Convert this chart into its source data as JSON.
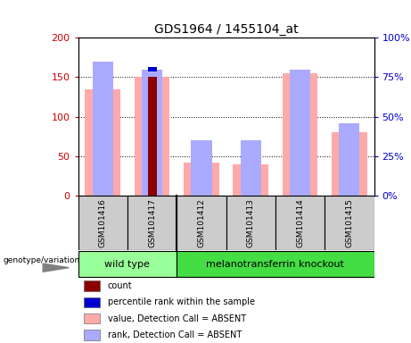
{
  "title": "GDS1964 / 1455104_at",
  "samples": [
    "GSM101416",
    "GSM101417",
    "GSM101412",
    "GSM101413",
    "GSM101414",
    "GSM101415"
  ],
  "pink_bars": [
    135,
    150,
    42,
    40,
    155,
    80
  ],
  "lavender_bars": [
    85,
    80,
    35,
    35,
    80,
    46
  ],
  "dark_red_bars": [
    0,
    150,
    0,
    0,
    0,
    0
  ],
  "blue_bars": [
    0,
    80,
    0,
    0,
    0,
    0
  ],
  "ylim_left": [
    0,
    200
  ],
  "ylim_right": [
    0,
    100
  ],
  "yticks_left": [
    0,
    50,
    100,
    150,
    200
  ],
  "yticks_right": [
    0,
    25,
    50,
    75,
    100
  ],
  "ytick_labels_left": [
    "0",
    "50",
    "100",
    "150",
    "200"
  ],
  "ytick_labels_right": [
    "0%",
    "25%",
    "50%",
    "75%",
    "100%"
  ],
  "left_axis_color": "#cc0000",
  "right_axis_color": "#0000cc",
  "pink_color": "#ffaaaa",
  "lavender_color": "#aaaaff",
  "dark_red_color": "#8b0000",
  "blue_color": "#0000cc",
  "legend_items": [
    {
      "color": "#8b0000",
      "label": "count"
    },
    {
      "color": "#0000cc",
      "label": "percentile rank within the sample"
    },
    {
      "color": "#ffaaaa",
      "label": "value, Detection Call = ABSENT"
    },
    {
      "color": "#aaaaff",
      "label": "rank, Detection Call = ABSENT"
    }
  ],
  "genotype_label": "genotype/variation",
  "wt_label": "wild type",
  "ko_label": "melanotransferrin knockout",
  "wt_color": "#99ff99",
  "ko_color": "#44dd44"
}
